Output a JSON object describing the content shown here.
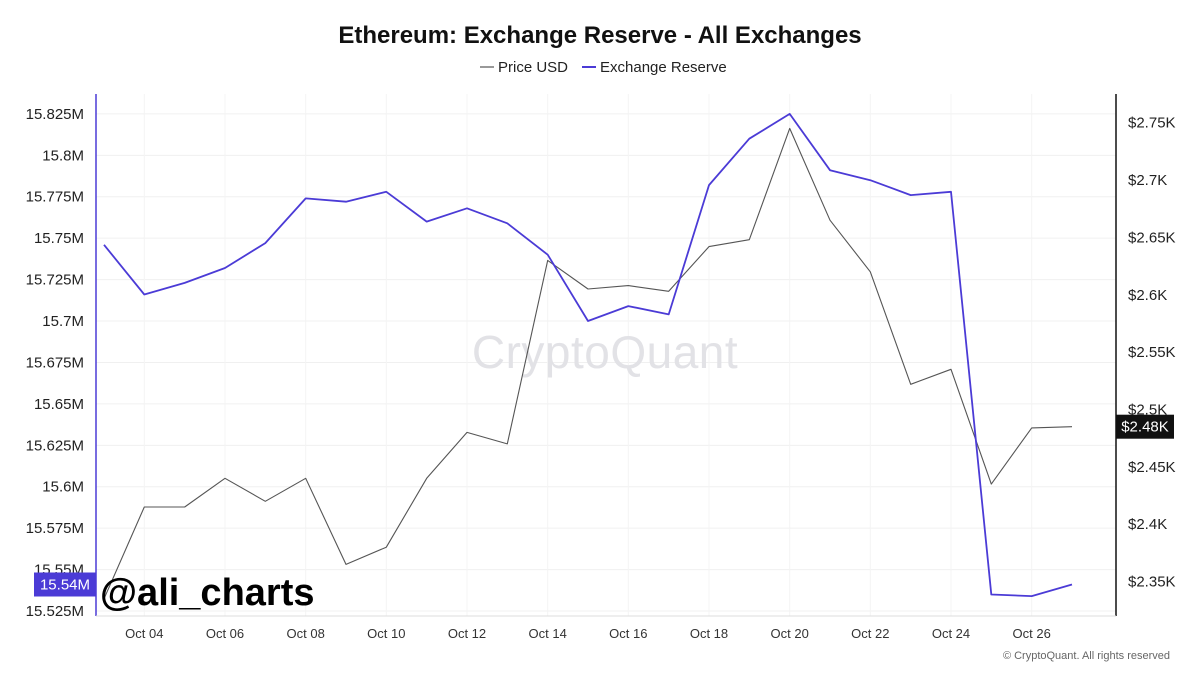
{
  "chart_data": {
    "type": "line",
    "title": "Ethereum: Exchange Reserve - All Exchanges",
    "legend": [
      {
        "name": "Price USD",
        "color": "#555555"
      },
      {
        "name": "Exchange Reserve",
        "color": "#4b3bd6"
      }
    ],
    "x": [
      "Oct 03",
      "Oct 04",
      "Oct 05",
      "Oct 06",
      "Oct 07",
      "Oct 08",
      "Oct 09",
      "Oct 10",
      "Oct 11",
      "Oct 12",
      "Oct 13",
      "Oct 14",
      "Oct 15",
      "Oct 16",
      "Oct 17",
      "Oct 18",
      "Oct 19",
      "Oct 20",
      "Oct 21",
      "Oct 22",
      "Oct 23",
      "Oct 24",
      "Oct 25",
      "Oct 26",
      "Oct 27"
    ],
    "x_ticks": [
      "Oct 04",
      "Oct 06",
      "Oct 08",
      "Oct 10",
      "Oct 12",
      "Oct 14",
      "Oct 16",
      "Oct 18",
      "Oct 20",
      "Oct 22",
      "Oct 24",
      "Oct 26"
    ],
    "series": [
      {
        "name": "Exchange Reserve",
        "axis": "left",
        "color": "#4b3bd6",
        "values": [
          15.746,
          15.716,
          15.723,
          15.732,
          15.747,
          15.774,
          15.772,
          15.778,
          15.76,
          15.768,
          15.759,
          15.74,
          15.7,
          15.709,
          15.704,
          15.782,
          15.81,
          15.825,
          15.791,
          15.785,
          15.776,
          15.778,
          15.535,
          15.534,
          15.541
        ]
      },
      {
        "name": "Price USD",
        "axis": "right",
        "color": "#555555",
        "values": [
          2.335,
          2.415,
          2.415,
          2.44,
          2.42,
          2.44,
          2.365,
          2.38,
          2.44,
          2.48,
          2.47,
          2.63,
          2.605,
          2.608,
          2.603,
          2.642,
          2.648,
          2.745,
          2.665,
          2.62,
          2.522,
          2.535,
          2.435,
          2.484,
          2.485
        ]
      }
    ],
    "left_axis": {
      "ylim": [
        15.522,
        15.837
      ],
      "ticks": [
        "15.825M",
        "15.8M",
        "15.775M",
        "15.75M",
        "15.725M",
        "15.7M",
        "15.675M",
        "15.65M",
        "15.625M",
        "15.6M",
        "15.575M",
        "15.55M",
        "15.525M"
      ],
      "tick_values": [
        15.825,
        15.8,
        15.775,
        15.75,
        15.725,
        15.7,
        15.675,
        15.65,
        15.625,
        15.6,
        15.575,
        15.55,
        15.525
      ]
    },
    "right_axis": {
      "ylim": [
        2.32,
        2.775
      ],
      "ticks": [
        "$2.75K",
        "$2.7K",
        "$2.65K",
        "$2.6K",
        "$2.55K",
        "$2.5K",
        "$2.45K",
        "$2.4K",
        "$2.35K"
      ],
      "tick_values": [
        2.75,
        2.7,
        2.65,
        2.6,
        2.55,
        2.5,
        2.45,
        2.4,
        2.35
      ]
    },
    "current_labels": {
      "left": "15.54M",
      "left_value": 15.541,
      "right": "$2.48K",
      "right_value": 2.485
    },
    "grid": true
  },
  "watermark": "CryptoQuant",
  "handle": "@ali_charts",
  "copyright": "© CryptoQuant. All rights reserved"
}
